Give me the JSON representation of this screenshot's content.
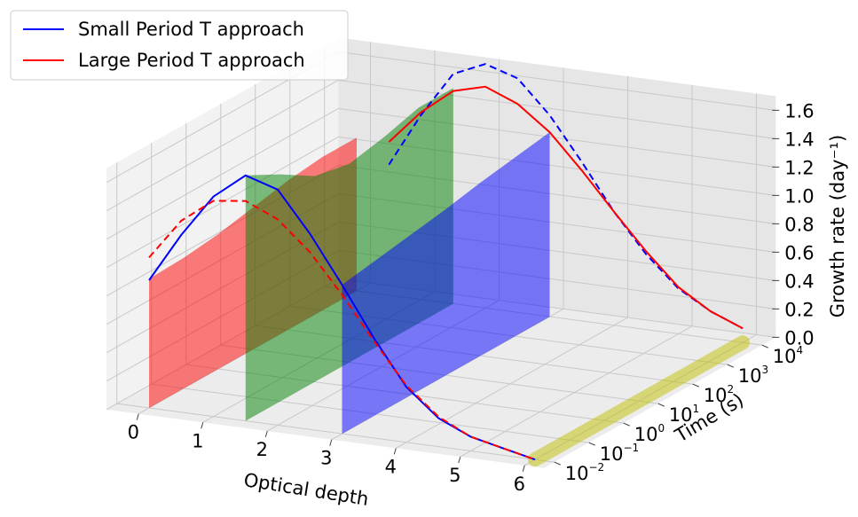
{
  "chart_data": {
    "type": "line3d",
    "xlabel": "Optical depth",
    "ylabel": "Time (s)",
    "zlabel": "Growth rate (day⁻¹)",
    "xlim": [
      -0.5,
      6.3
    ],
    "tlim": [
      0.005,
      25000
    ],
    "zlim": [
      0,
      1.7
    ],
    "log_t": true,
    "grid": true,
    "legend": "upper left",
    "xticks": [
      0,
      1,
      2,
      3,
      4,
      5,
      6
    ],
    "tticks": [
      {
        "value": 0.01,
        "label": "10",
        "exponent": "−2"
      },
      {
        "value": 0.1,
        "label": "10",
        "exponent": "−1"
      },
      {
        "value": 1,
        "label": "10",
        "exponent": "0"
      },
      {
        "value": 10,
        "label": "10",
        "exponent": "1"
      },
      {
        "value": 100,
        "label": "10",
        "exponent": "2"
      },
      {
        "value": 1000,
        "label": "10",
        "exponent": "3"
      },
      {
        "value": 10000,
        "label": "10",
        "exponent": "4"
      }
    ],
    "zticks": [
      {
        "value": 0,
        "label": "0.0"
      },
      0.2,
      0.4,
      0.6,
      0.8,
      {
        "value": 1,
        "label": "1.0"
      },
      1.2,
      1.4,
      1.6
    ],
    "planes": [
      {
        "x": 0,
        "color": "#ff0000",
        "t": [
          0.01,
          0.1,
          1,
          10,
          100,
          1000,
          10000
        ],
        "values": [
          0.91,
          0.92,
          0.95,
          1.0,
          1.05,
          1.08,
          1.08
        ]
      },
      {
        "x": 1.5,
        "color": "#008000",
        "t": [
          0.01,
          0.1,
          1,
          10,
          100,
          1000,
          10000
        ],
        "values": [
          1.73,
          1.6,
          1.45,
          1.4,
          1.45,
          1.52,
          1.52
        ]
      },
      {
        "x": 3,
        "color": "#0000ff",
        "t": [
          0.01,
          0.1,
          1,
          10,
          100,
          1000,
          10000
        ],
        "values": [
          1.05,
          1.09,
          1.13,
          1.17,
          1.22,
          1.26,
          1.3
        ]
      },
      {
        "x": 6,
        "color": "#bfbf00",
        "t": [
          0.01,
          0.1,
          1,
          10,
          100,
          1000,
          10000
        ],
        "values": [
          0,
          0,
          0,
          0,
          0,
          0,
          0
        ]
      }
    ],
    "series": [
      {
        "name": "Small Period T approach",
        "color": "#0000ff",
        "pieces": [
          {
            "t": 0.01,
            "style": "solid",
            "x": [
              0,
              0.5,
              1,
              1.5,
              2,
              2.5,
              3,
              3.5,
              4,
              4.5,
              5,
              5.5,
              6
            ],
            "values": [
              0.9,
              1.25,
              1.55,
              1.73,
              1.66,
              1.38,
              1.05,
              0.7,
              0.39,
              0.2,
              0.1,
              0.05,
              0
            ]
          },
          {
            "t": 10000,
            "style": "dashed",
            "x": [
              0.5,
              1,
              1.5,
              2,
              2.5,
              3,
              3.5,
              4,
              4.5,
              5,
              5.5,
              6
            ],
            "values": [
              0.92,
              1.3,
              1.62,
              1.72,
              1.65,
              1.42,
              1.12,
              0.8,
              0.53,
              0.32,
              0.19,
              0.1
            ]
          }
        ]
      },
      {
        "name": "Large Period T approach",
        "color": "#ff0000",
        "pieces": [
          {
            "t": 0.01,
            "style": "dashed",
            "x": [
              0,
              0.5,
              1,
              1.5,
              2,
              2.5,
              3,
              3.5,
              4,
              4.5,
              5,
              5.5,
              6
            ],
            "values": [
              1.06,
              1.35,
              1.52,
              1.55,
              1.45,
              1.25,
              0.98,
              0.68,
              0.4,
              0.21,
              0.1,
              0.05,
              0
            ]
          },
          {
            "t": 10000,
            "style": "solid",
            "x": [
              0.5,
              1,
              1.5,
              2,
              2.5,
              3,
              3.5,
              4,
              4.5,
              5,
              5.5,
              6
            ],
            "values": [
              1.08,
              1.32,
              1.5,
              1.56,
              1.47,
              1.3,
              1.06,
              0.8,
              0.55,
              0.33,
              0.19,
              0.1
            ]
          }
        ]
      }
    ]
  }
}
